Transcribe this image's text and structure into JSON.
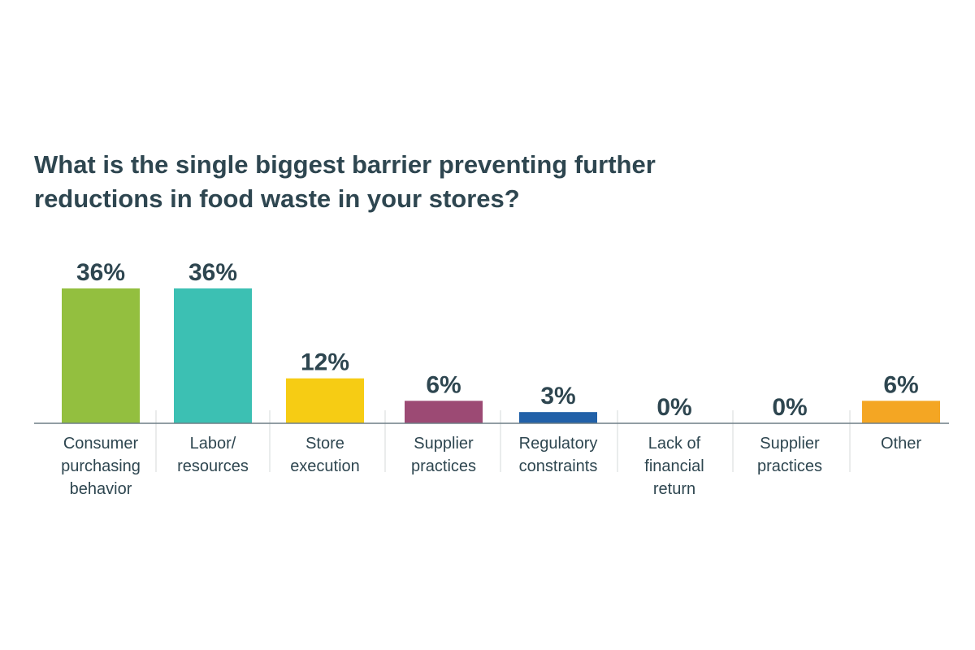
{
  "chart_data": {
    "type": "bar",
    "title": "What is the single biggest barrier preventing further reductions in food waste in your stores?",
    "title_lines": [
      "What is the single biggest barrier preventing further",
      "reductions in food waste in your stores?"
    ],
    "categories": [
      "Consumer purchasing behavior",
      "Labor/ resources",
      "Store execution",
      "Supplier practices",
      "Regulatory constraints",
      "Lack of financial return",
      "Supplier practices",
      "Other"
    ],
    "category_lines": [
      [
        "Consumer",
        "purchasing",
        "behavior"
      ],
      [
        "Labor/",
        "resources"
      ],
      [
        "Store",
        "execution"
      ],
      [
        "Supplier",
        "practices"
      ],
      [
        "Regulatory",
        "constraints"
      ],
      [
        "Lack of",
        "financial",
        "return"
      ],
      [
        "Supplier",
        "practices"
      ],
      [
        "Other"
      ]
    ],
    "values": [
      36,
      36,
      12,
      6,
      3,
      0,
      0,
      6
    ],
    "value_labels": [
      "36%",
      "36%",
      "12%",
      "6%",
      "3%",
      "0%",
      "0%",
      "6%"
    ],
    "colors": [
      "#93bf3f",
      "#3cc0b3",
      "#f6cc14",
      "#9c4a74",
      "#2261a8",
      "#9c4a74",
      "#9c4a74",
      "#f4a623"
    ],
    "xlabel": "",
    "ylabel": "",
    "ylim": [
      0,
      36
    ],
    "grid": false,
    "legend": "none"
  }
}
